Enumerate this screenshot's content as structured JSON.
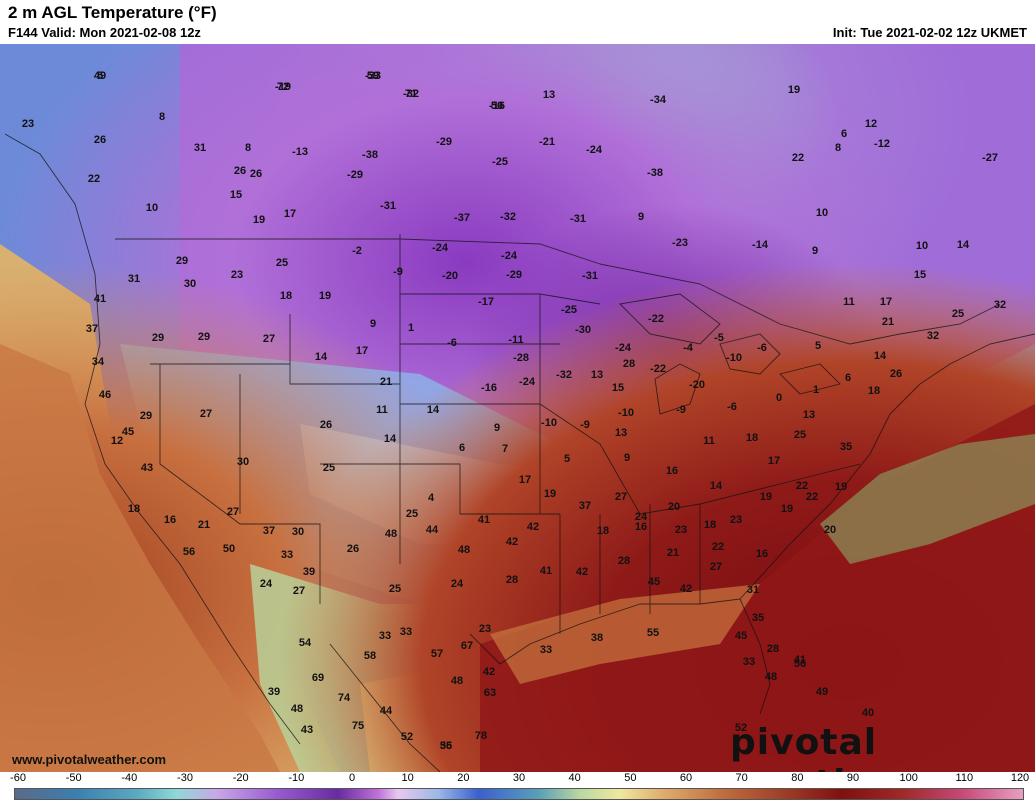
{
  "header": {
    "title": "2 m AGL Temperature (°F)",
    "subtitle": "F144 Valid: Mon 2021-02-08 12z",
    "init": "Init: Tue 2021-02-02 12z UKMET"
  },
  "footer": {
    "site": "www.pivotalweather.com",
    "watermark": "pivotal weather"
  },
  "colorbar": {
    "unit": "°F",
    "ticks": [
      "-60",
      "-50",
      "-40",
      "-30",
      "-20",
      "-10",
      "0",
      "10",
      "20",
      "30",
      "40",
      "50",
      "60",
      "70",
      "80",
      "90",
      "100",
      "110",
      "120"
    ],
    "palette": [
      "#5a6a8a",
      "#3a7fb0",
      "#8fd8d8",
      "#9a5ad0",
      "#6a2aa0",
      "#e8c8f0",
      "#3a60d0",
      "#b8d8a0",
      "#f0e8a0",
      "#c07040",
      "#801010",
      "#c84878",
      "#e8a0c0"
    ]
  },
  "labels": [
    "5",
    "-33",
    "-19",
    "-32",
    "-16",
    "13",
    "-34",
    "19",
    "8",
    "23",
    "8",
    "26",
    "31",
    "8",
    "-13",
    "-38",
    "-29",
    "-21",
    "-24",
    "12",
    "6",
    "-12",
    "-27",
    "26",
    "22",
    "-25",
    "-38",
    "22",
    "26",
    "-29",
    "10",
    "15",
    "17",
    "19",
    "-31",
    "-37",
    "-32",
    "-31",
    "9",
    "10",
    "-24",
    "-24",
    "-23",
    "-14",
    "9",
    "10",
    "14",
    "29",
    "25",
    "-2",
    "-20",
    "-29",
    "15",
    "23",
    "31",
    "30",
    "18",
    "19",
    "-9",
    "-17",
    "-31",
    "-25",
    "-22",
    "11",
    "17",
    "21",
    "41",
    "37",
    "29",
    "29",
    "9",
    "1",
    "-6",
    "-11",
    "-30",
    "-24",
    "-4",
    "-5",
    "-10",
    "-6",
    "5",
    "25",
    "32",
    "34",
    "32",
    "27",
    "14",
    "17",
    "-28",
    "-32",
    "28",
    "-22",
    "13",
    "14",
    "26",
    "46",
    "29",
    "27",
    "21",
    "-16",
    "-24",
    "15",
    "-20",
    "-9",
    "-6",
    "0",
    "1",
    "6",
    "18",
    "45",
    "26",
    "11",
    "14",
    "9",
    "-10",
    "-9",
    "13",
    "-10",
    "11",
    "18",
    "25",
    "13",
    "35",
    "12",
    "14",
    "6",
    "7",
    "5",
    "9",
    "16",
    "14",
    "17",
    "43",
    "30",
    "25",
    "17",
    "19",
    "4",
    "25",
    "41",
    "37",
    "27",
    "24",
    "20",
    "18",
    "19",
    "22",
    "18",
    "16",
    "21",
    "27",
    "30",
    "48",
    "56",
    "50",
    "37",
    "33",
    "39",
    "44",
    "48",
    "42",
    "42",
    "18",
    "16",
    "21",
    "23",
    "22",
    "23",
    "19",
    "20",
    "26",
    "28",
    "41",
    "42",
    "28",
    "27",
    "16",
    "22",
    "19",
    "24",
    "27",
    "25",
    "24",
    "23",
    "33",
    "33",
    "45",
    "42",
    "31",
    "35",
    "33",
    "38",
    "55",
    "45",
    "28",
    "56",
    "54",
    "58",
    "57",
    "67",
    "42",
    "33",
    "41",
    "39",
    "48",
    "69",
    "74",
    "44",
    "48",
    "63",
    "49",
    "40",
    "43",
    "52",
    "75",
    "78",
    "48",
    "52",
    "56",
    "35",
    "49",
    "59",
    "72",
    "71",
    "50"
  ]
}
